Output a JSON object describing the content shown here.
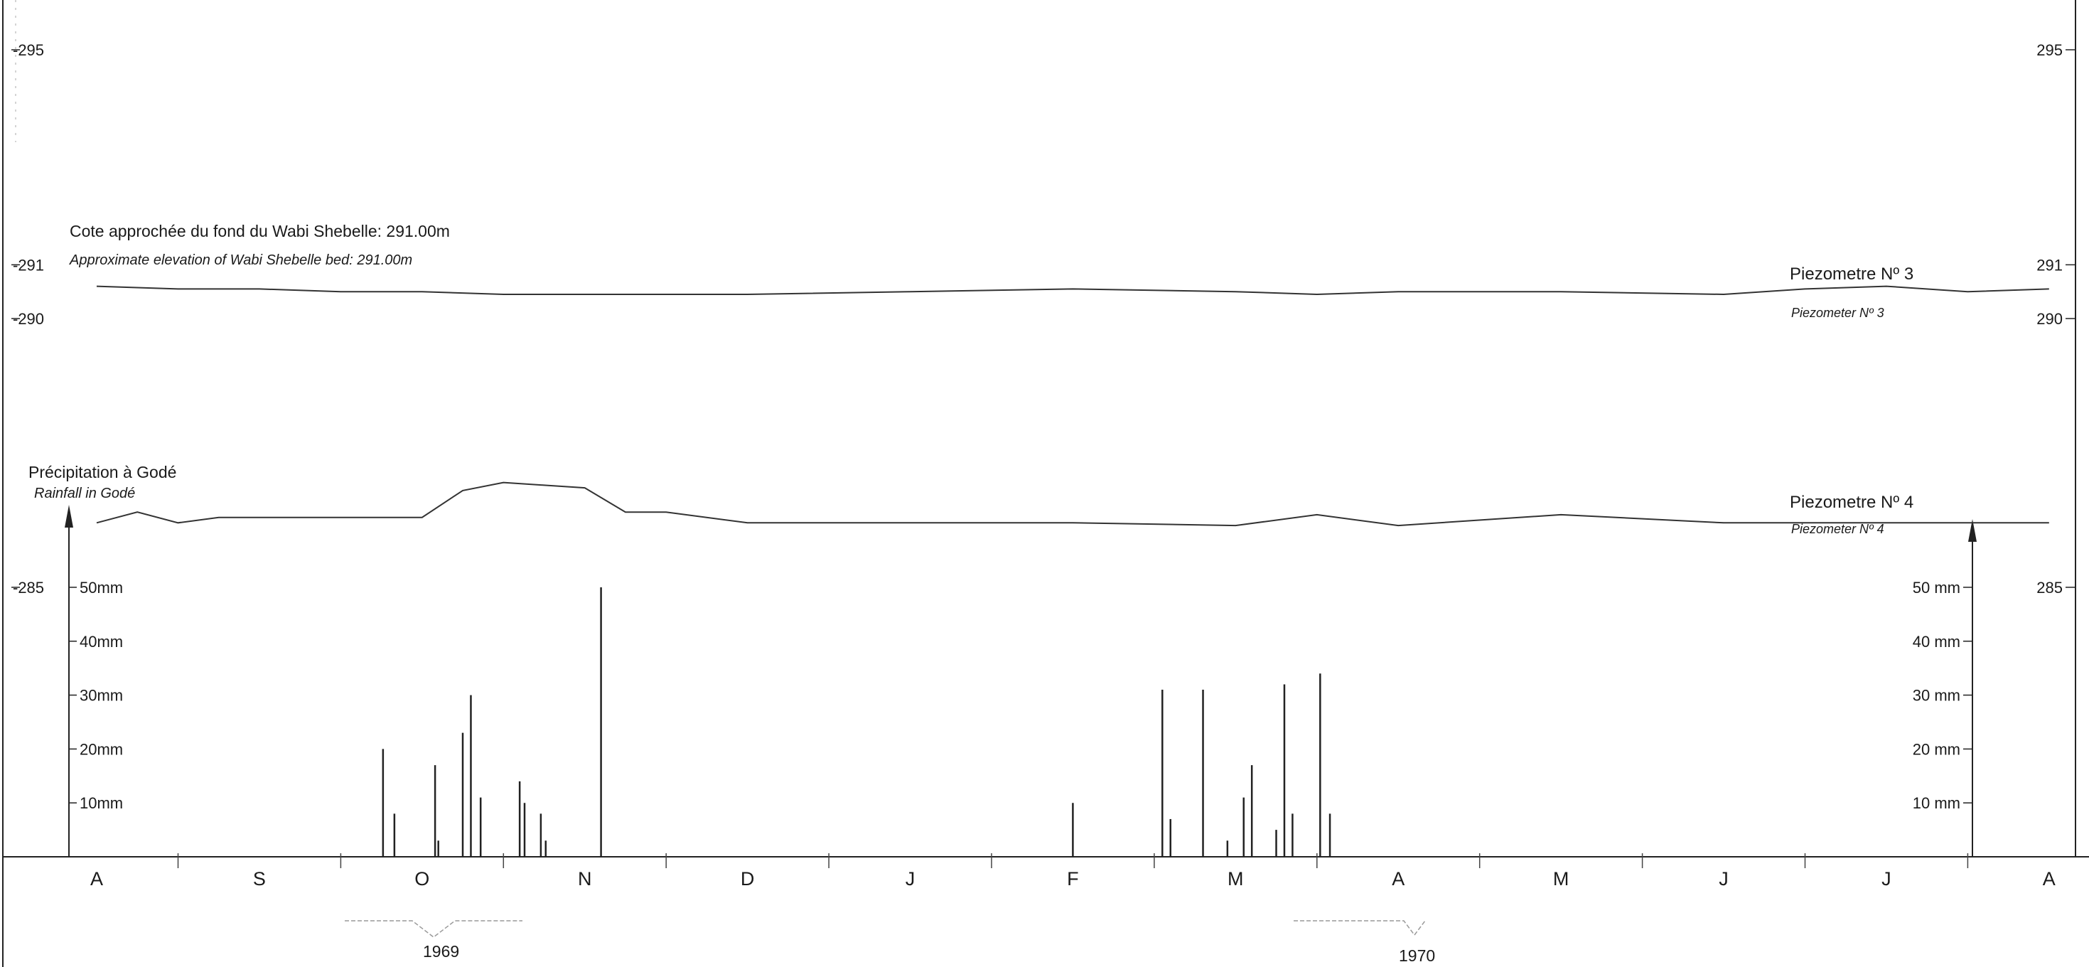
{
  "chart_data": {
    "type": "line",
    "annotations": {
      "bed_fr": "Cote approchée du fond du Wabi Shebelle: 291.00m",
      "bed_en": "Approximate elevation of Wabi Shebelle bed: 291.00m",
      "rain_fr": "Précipitation à Godé",
      "rain_en": "Rainfall in Godé",
      "year1": "1969",
      "year2": "1970"
    },
    "left_axis": {
      "ticks": [
        295,
        291,
        290,
        285
      ],
      "tick_labels": [
        "-295",
        "-291",
        "-290",
        "-285"
      ]
    },
    "right_axis": {
      "ticks": [
        295,
        291,
        290,
        285
      ],
      "tick_labels": [
        "295",
        "291",
        "290",
        "285"
      ]
    },
    "rain_axis_left": {
      "ticks": [
        50,
        40,
        30,
        20,
        10
      ],
      "tick_labels": [
        "50mm",
        "40mm",
        "30mm",
        "20mm",
        "10mm"
      ]
    },
    "rain_axis_right": {
      "ticks": [
        50,
        40,
        30,
        20,
        10
      ],
      "tick_labels": [
        "50 mm",
        "40 mm",
        "30 mm",
        "20 mm",
        "10 mm"
      ]
    },
    "months": [
      "A",
      "S",
      "O",
      "N",
      "D",
      "J",
      "F",
      "M",
      "A",
      "M",
      "J",
      "J",
      "A"
    ],
    "series": [
      {
        "name": "Piezometre Nº 3",
        "name_en": "Piezometer Nº 3",
        "x": [
          0.0,
          0.5,
          1.0,
          1.5,
          2.0,
          2.5,
          3.0,
          3.5,
          4.0,
          5.0,
          6.0,
          7.0,
          7.5,
          8.0,
          9.0,
          10.0,
          10.5,
          11.0,
          11.5,
          12.0
        ],
        "y": [
          290.6,
          290.55,
          290.55,
          290.5,
          290.5,
          290.45,
          290.45,
          290.45,
          290.45,
          290.5,
          290.55,
          290.5,
          290.45,
          290.5,
          290.5,
          290.45,
          290.55,
          290.6,
          290.5,
          290.55
        ]
      },
      {
        "name": "Piezometre Nº 4",
        "name_en": "Piezometer Nº 4",
        "x": [
          0.0,
          0.25,
          0.5,
          0.75,
          1.0,
          1.5,
          2.0,
          2.25,
          2.5,
          2.75,
          3.0,
          3.25,
          3.5,
          4.0,
          5.0,
          6.0,
          7.0,
          7.5,
          8.0,
          9.0,
          10.0,
          11.0,
          12.0
        ],
        "y": [
          286.2,
          286.4,
          286.2,
          286.3,
          286.3,
          286.3,
          286.3,
          286.8,
          286.95,
          286.9,
          286.85,
          286.4,
          286.4,
          286.2,
          286.2,
          286.2,
          286.15,
          286.35,
          286.15,
          286.35,
          286.2,
          286.2,
          286.2
        ]
      }
    ],
    "rainfall": {
      "x": [
        1.76,
        1.83,
        2.08,
        2.1,
        2.25,
        2.3,
        2.36,
        2.6,
        2.63,
        2.73,
        2.76,
        3.1,
        6.0,
        6.55,
        6.6,
        6.8,
        6.95,
        7.05,
        7.1,
        7.25,
        7.3,
        7.35,
        7.52,
        7.58
      ],
      "y": [
        20,
        8,
        17,
        3,
        23,
        30,
        11,
        14,
        10,
        8,
        3,
        50,
        10,
        31,
        7,
        31,
        3,
        11,
        17,
        5,
        32,
        8,
        34,
        8
      ]
    }
  }
}
